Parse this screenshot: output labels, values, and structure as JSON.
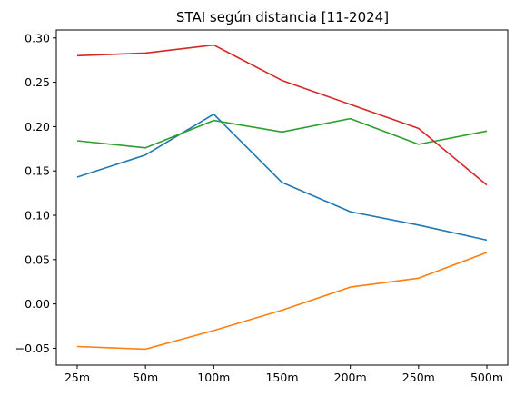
{
  "chart_data": {
    "type": "line",
    "title": "STAI según distancia [11-2024]",
    "xlabel": "",
    "ylabel": "",
    "categories": [
      "25m",
      "50m",
      "100m",
      "150m",
      "200m",
      "250m",
      "500m"
    ],
    "ylim": [
      -0.069,
      0.309
    ],
    "yticks": [
      -0.05,
      0.0,
      0.05,
      0.1,
      0.15,
      0.2,
      0.25,
      0.3
    ],
    "ytick_labels": [
      "−0.05",
      "0.00",
      "0.05",
      "0.10",
      "0.15",
      "0.20",
      "0.25",
      "0.30"
    ],
    "grid": false,
    "series": [
      {
        "color": "#1f77b4",
        "values": [
          0.143,
          0.168,
          0.214,
          0.137,
          0.104,
          0.089,
          0.072
        ]
      },
      {
        "color": "#ff7f0e",
        "values": [
          -0.048,
          -0.051,
          -0.03,
          -0.007,
          0.019,
          0.029,
          0.058
        ]
      },
      {
        "color": "#2ca02c",
        "values": [
          0.184,
          0.176,
          0.207,
          0.194,
          0.209,
          0.18,
          0.195
        ]
      },
      {
        "color": "#d62728",
        "values": [
          0.28,
          0.283,
          0.292,
          0.252,
          0.225,
          0.198,
          0.134
        ]
      }
    ]
  }
}
